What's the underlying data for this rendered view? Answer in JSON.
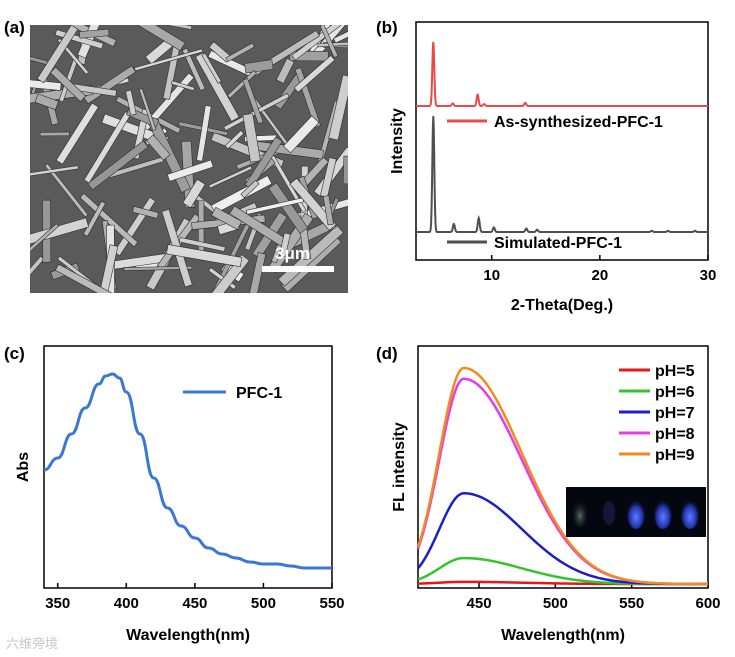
{
  "panels": {
    "a": "(a)",
    "b": "(b)",
    "c": "(c)",
    "d": "(d)"
  },
  "sem": {
    "scale_label": "3μm"
  },
  "watermark": "六维旁境",
  "chart_data": [
    {
      "panel": "b",
      "type": "line",
      "xlabel": "2-Theta(Deg.)",
      "ylabel": "Intensity",
      "xlim": [
        3,
        30
      ],
      "x_ticks": [
        10,
        20,
        30
      ],
      "y_ticks": [],
      "grid": false,
      "legend_position": "inline",
      "series": [
        {
          "name": "As-synthesized-PFC-1",
          "color": "#e84a4a",
          "peaks": [
            [
              4.6,
              1.0
            ],
            [
              6.4,
              0.04
            ],
            [
              8.7,
              0.18
            ],
            [
              9.3,
              0.03
            ],
            [
              13.1,
              0.05
            ]
          ]
        },
        {
          "name": "Simulated-PFC-1",
          "color": "#4f4f4f",
          "peaks": [
            [
              4.6,
              1.0
            ],
            [
              6.5,
              0.07
            ],
            [
              8.8,
              0.12
            ],
            [
              10.2,
              0.04
            ],
            [
              13.2,
              0.03
            ],
            [
              14.2,
              0.02
            ],
            [
              24.8,
              0.01
            ],
            [
              26.3,
              0.01
            ],
            [
              28.8,
              0.01
            ]
          ]
        }
      ]
    },
    {
      "panel": "c",
      "type": "line",
      "xlabel": "Wavelength(nm)",
      "ylabel": "Abs",
      "xlim": [
        340,
        550
      ],
      "x_ticks": [
        350,
        400,
        450,
        500,
        550
      ],
      "y_ticks": [],
      "grid": false,
      "legend_position": "top-right",
      "series": [
        {
          "name": "PFC-1",
          "color": "#3b78d4",
          "x": [
            340,
            350,
            360,
            370,
            380,
            385,
            390,
            395,
            400,
            410,
            420,
            430,
            440,
            450,
            460,
            470,
            480,
            490,
            500,
            510,
            520,
            530,
            540,
            550
          ],
          "y": [
            0.52,
            0.58,
            0.7,
            0.83,
            0.95,
            0.99,
            1.0,
            0.98,
            0.91,
            0.7,
            0.48,
            0.33,
            0.24,
            0.18,
            0.13,
            0.1,
            0.08,
            0.06,
            0.05,
            0.05,
            0.04,
            0.03,
            0.03,
            0.03
          ]
        }
      ]
    },
    {
      "panel": "d",
      "type": "line",
      "xlabel": "Wavelength(nm)",
      "ylabel": "FL intensity",
      "xlim": [
        410,
        600
      ],
      "x_ticks": [
        450,
        500,
        550,
        600
      ],
      "y_ticks": [],
      "grid": false,
      "legend_position": "top-right",
      "series": [
        {
          "name": "pH=5",
          "color": "#e8161b",
          "peak": 0.01
        },
        {
          "name": "pH=6",
          "color": "#35c42c",
          "peak": 0.12
        },
        {
          "name": "pH=7",
          "color": "#1e1ec8",
          "peak": 0.42
        },
        {
          "name": "pH=8",
          "color": "#e83ae8",
          "peak": 0.95
        },
        {
          "name": "pH=9",
          "color": "#f28a1e",
          "peak": 1.0
        }
      ]
    }
  ]
}
